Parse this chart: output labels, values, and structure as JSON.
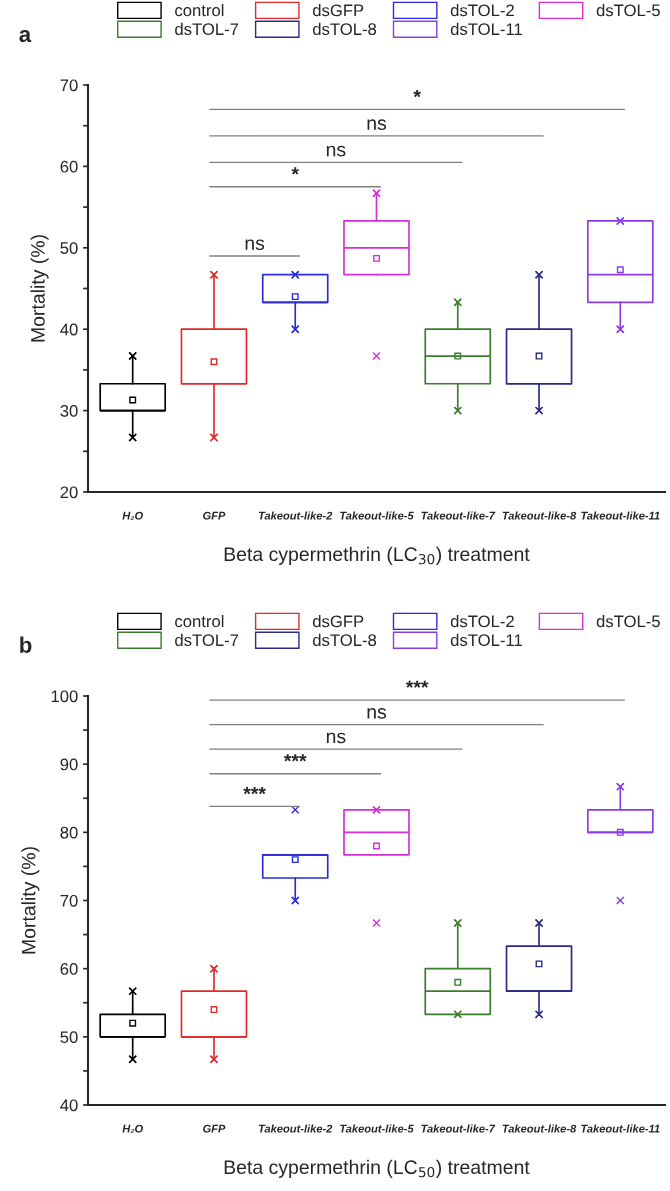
{
  "chart_data": [
    {
      "type": "box",
      "title": "a",
      "xlabel": "Beta cypermethrin (LC$_{30}$) treatment",
      "ylabel": "Mortality (%)",
      "categories": [
        "H₂O",
        "GFP",
        "Takeout-like-2",
        "Takeout-like-5",
        "Takeout-like-7",
        "Takeout-like-8",
        "Takeout-like-11"
      ],
      "ylim": [
        20,
        70
      ],
      "yticks": [
        20,
        {
          "value": 25,
          "label": null
        },
        30,
        {
          "value": 35,
          "label": null
        },
        40,
        {
          "value": 45,
          "label": null
        },
        50,
        {
          "value": 55,
          "label": null
        },
        60,
        {
          "value": 65,
          "label": null
        },
        70
      ],
      "legend": "top",
      "grid": false,
      "marker": "square",
      "annotations": [
        "ns",
        "*",
        "ns",
        "ns",
        "*"
      ],
      "series": [
        {
          "name": "control",
          "color": "#000000",
          "boxes": [
            {
              "low": 26.7,
              "q1": 30,
              "median": 30,
              "q3": 33.3,
              "high": 36.7,
              "mean": 31.3
            },
            null,
            null,
            null,
            null,
            null,
            null
          ]
        },
        {
          "name": "dsGFP",
          "color": "#e02a2a",
          "boxes": [
            null,
            {
              "low": 26.7,
              "q1": 33.3,
              "median": 33.3,
              "q3": 40,
              "high": 46.7,
              "mean": 36
            },
            null,
            null,
            null,
            null,
            null
          ]
        },
        {
          "name": "dsTOL-2",
          "color": "#2b2bdb",
          "boxes": [
            null,
            null,
            {
              "low": 40,
              "q1": 43.3,
              "median": 43.3,
              "q3": 46.7,
              "high": 46.7,
              "mean": 44
            },
            null,
            null,
            null,
            null
          ]
        },
        {
          "name": "dsTOL-5",
          "color": "#d42fd4",
          "boxes": [
            null,
            null,
            null,
            {
              "low": 46.7,
              "q1": 46.7,
              "median": 50,
              "q3": 53.3,
              "high": 56.7,
              "mean": 48.7,
              "outliers": [
                36.7
              ]
            },
            null,
            null,
            null
          ]
        },
        {
          "name": "dsTOL-7",
          "color": "#3a7d2a",
          "boxes": [
            null,
            null,
            null,
            null,
            {
              "low": 30,
              "q1": 33.3,
              "median": 36.7,
              "q3": 40,
              "high": 43.3,
              "mean": 36.7
            },
            null,
            null
          ]
        },
        {
          "name": "dsTOL-8",
          "color": "#2a2a8a",
          "boxes": [
            null,
            null,
            null,
            null,
            null,
            {
              "low": 30,
              "q1": 33.3,
              "median": 33.3,
              "q3": 40,
              "high": 46.7,
              "mean": 36.7
            },
            null
          ]
        },
        {
          "name": "dsTOL-11",
          "color": "#8a3ae6",
          "boxes": [
            null,
            null,
            null,
            null,
            null,
            null,
            {
              "low": 40,
              "q1": 43.3,
              "median": 46.7,
              "q3": 53.3,
              "high": 53.3,
              "mean": 47.3
            }
          ]
        }
      ]
    },
    {
      "type": "box",
      "title": "b",
      "xlabel": "Beta cypermethrin (LC$_{50}$) treatment",
      "ylabel": "Mortality (%)",
      "categories": [
        "H₂O",
        "GFP",
        "Takeout-like-2",
        "Takeout-like-5",
        "Takeout-like-7",
        "Takeout-like-8",
        "Takeout-like-11"
      ],
      "ylim": [
        40,
        100
      ],
      "yticks": [
        40,
        {
          "value": 45,
          "label": null
        },
        50,
        {
          "value": 55,
          "label": null
        },
        60,
        {
          "value": 65,
          "label": null
        },
        70,
        {
          "value": 75,
          "label": null
        },
        80,
        {
          "value": 85,
          "label": null
        },
        90,
        {
          "value": 95,
          "label": null
        },
        100
      ],
      "legend": "top",
      "grid": false,
      "marker": "square",
      "annotations": [
        "***",
        "***",
        "ns",
        "ns",
        "***"
      ],
      "series": [
        {
          "name": "control",
          "color": "#000000",
          "boxes": [
            {
              "low": 46.7,
              "q1": 50,
              "median": 50,
              "q3": 53.3,
              "high": 56.7,
              "mean": 52
            },
            null,
            null,
            null,
            null,
            null,
            null
          ]
        },
        {
          "name": "dsGFP",
          "color": "#e02a2a",
          "boxes": [
            null,
            {
              "low": 46.7,
              "q1": 50,
              "median": 50,
              "q3": 56.7,
              "high": 60,
              "mean": 54
            },
            null,
            null,
            null,
            null,
            null
          ]
        },
        {
          "name": "dsTOL-2",
          "color": "#2b2bdb",
          "boxes": [
            null,
            null,
            {
              "low": 70,
              "q1": 73.3,
              "median": 76.7,
              "q3": 76.7,
              "high": 76.7,
              "mean": 76,
              "outliers": [
                83.3
              ]
            },
            null,
            null,
            null,
            null
          ]
        },
        {
          "name": "dsTOL-5",
          "color": "#d42fd4",
          "boxes": [
            null,
            null,
            null,
            {
              "low": 76.7,
              "q1": 76.7,
              "median": 80,
              "q3": 83.3,
              "high": 83.3,
              "mean": 78,
              "outliers": [
                66.7
              ]
            },
            null,
            null,
            null
          ]
        },
        {
          "name": "dsTOL-7",
          "color": "#3a7d2a",
          "boxes": [
            null,
            null,
            null,
            null,
            {
              "low": 53.3,
              "q1": 53.3,
              "median": 56.7,
              "q3": 60,
              "high": 66.7,
              "mean": 58
            },
            null,
            null
          ]
        },
        {
          "name": "dsTOL-8",
          "color": "#2a2a8a",
          "boxes": [
            null,
            null,
            null,
            null,
            null,
            {
              "low": 53.3,
              "q1": 56.7,
              "median": 56.7,
              "q3": 63.3,
              "high": 66.7,
              "mean": 60.7
            },
            null
          ]
        },
        {
          "name": "dsTOL-11",
          "color": "#8a3ae6",
          "boxes": [
            null,
            null,
            null,
            null,
            null,
            null,
            {
              "low": 80,
              "q1": 80,
              "median": 80,
              "q3": 83.3,
              "high": 86.7,
              "mean": 80,
              "outliers": [
                70
              ]
            }
          ]
        }
      ]
    }
  ]
}
